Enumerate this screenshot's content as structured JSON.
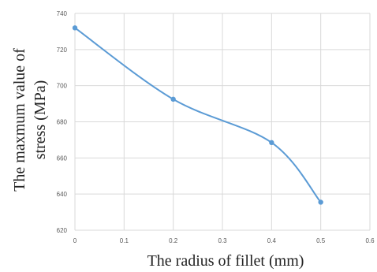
{
  "chart_data": {
    "type": "line",
    "smooth": true,
    "title": "",
    "xlabel": "The radius of fillet (mm)",
    "ylabel_lines": [
      "The maxmum value of",
      "stress (MPa)"
    ],
    "xlim": [
      0,
      0.6
    ],
    "ylim": [
      620,
      740
    ],
    "x_ticks": [
      0,
      0.1,
      0.2,
      0.3,
      0.4,
      0.5,
      0.6
    ],
    "x_tick_labels": [
      "0",
      "0.1",
      "0.2",
      "0.3",
      "0.4",
      "0.5",
      "0.6"
    ],
    "y_ticks": [
      620,
      640,
      660,
      680,
      700,
      720,
      740
    ],
    "y_tick_labels": [
      "620",
      "640",
      "660",
      "680",
      "700",
      "720",
      "740"
    ],
    "grid": true,
    "series": [
      {
        "x": [
          0,
          0.2,
          0.4,
          0.5
        ],
        "values": [
          732,
          692.5,
          668.5,
          635.5
        ],
        "color": "#5b9bd5"
      }
    ]
  }
}
